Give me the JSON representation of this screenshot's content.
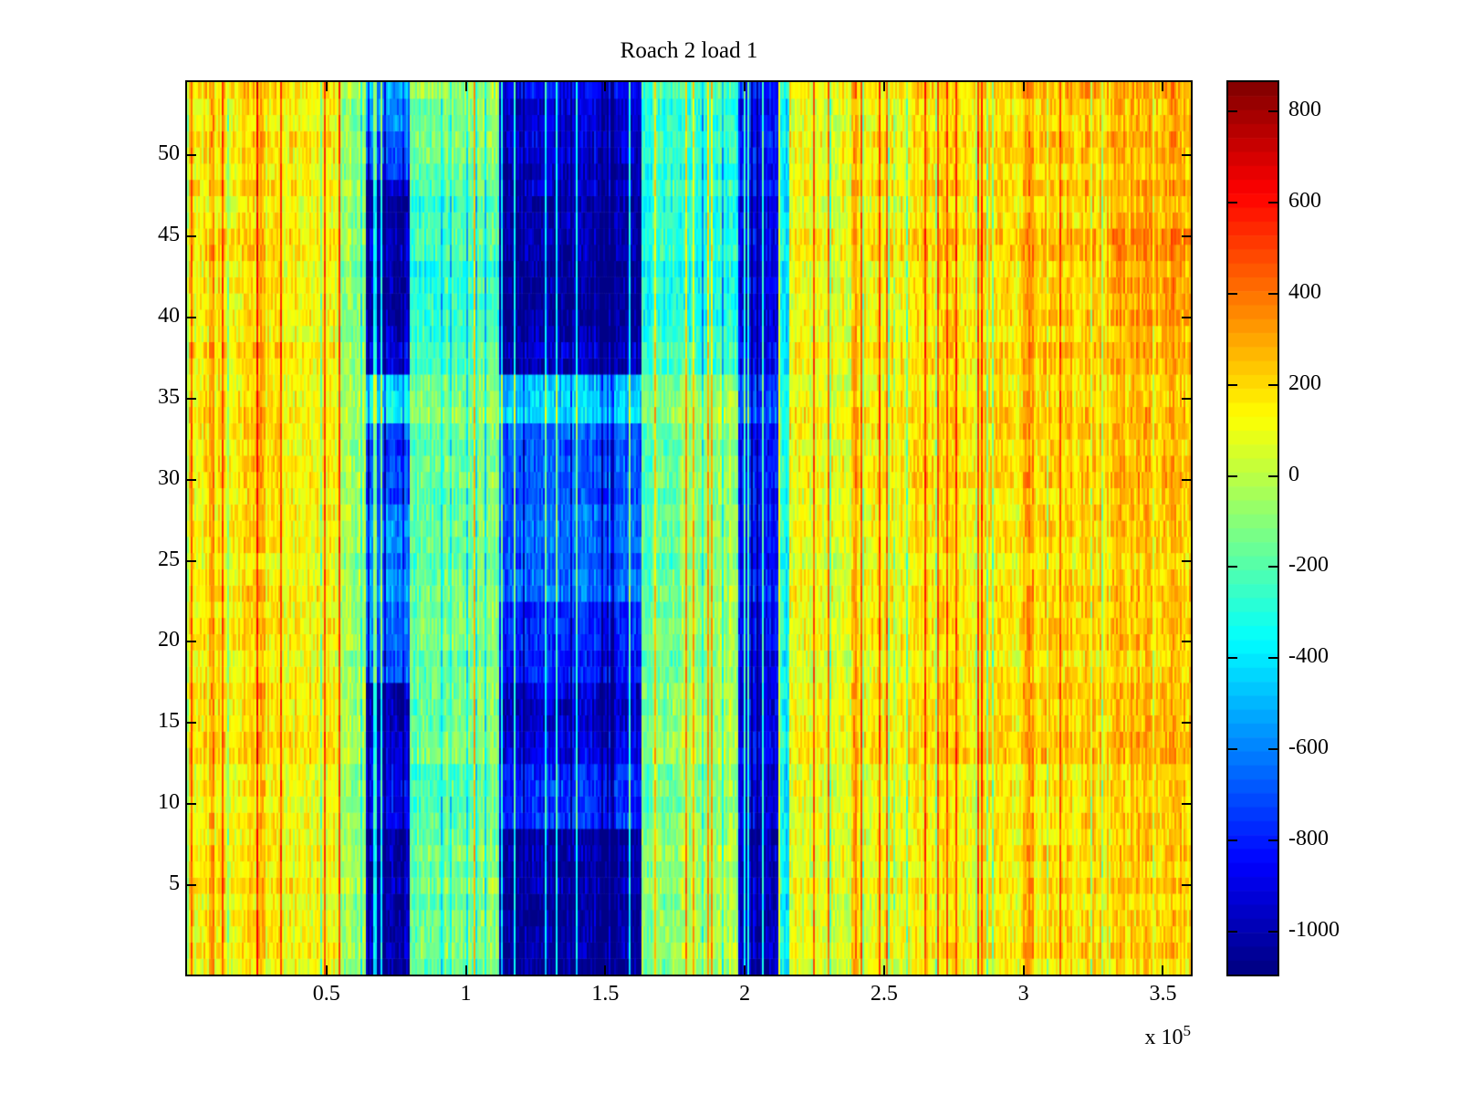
{
  "title": "Roach 2 load 1",
  "axes": {
    "x_tick_labels": [
      "0.5",
      "1",
      "1.5",
      "2",
      "2.5",
      "3",
      "3.5"
    ],
    "y_tick_labels": [
      "5",
      "10",
      "15",
      "20",
      "25",
      "30",
      "35",
      "40",
      "45",
      "50"
    ],
    "x_scale_prefix": "x 10",
    "x_scale_exponent": "5",
    "axis_color": "#000000",
    "background": "#ffffff"
  },
  "colorbar": {
    "tick_labels": [
      "800",
      "600",
      "400",
      "200",
      "0",
      "-200",
      "-400",
      "-600",
      "-800",
      "-1000"
    ],
    "n_levels": 64
  },
  "chart_data": {
    "type": "heatmap",
    "title": "Roach 2 load 1",
    "colormap": "jet",
    "clim": [
      -1095,
      865
    ],
    "x_range": [
      0,
      3.6
    ],
    "x_units": "1e5",
    "x_ticks": [
      0.5,
      1,
      1.5,
      2,
      2.5,
      3,
      3.5
    ],
    "y_ticks": [
      5,
      10,
      15,
      20,
      25,
      30,
      35,
      40,
      45,
      50
    ],
    "n_rows": 55,
    "grid": false,
    "legend": "colorbar-right",
    "row_bands": [
      [
        0,
        8
      ],
      [
        9,
        12
      ],
      [
        13,
        17
      ],
      [
        18,
        22
      ],
      [
        23,
        28
      ],
      [
        29,
        33
      ],
      [
        34,
        36
      ],
      [
        37,
        39
      ],
      [
        40,
        45
      ],
      [
        46,
        48
      ],
      [
        49,
        51
      ],
      [
        52,
        54
      ]
    ],
    "col_band_edges": [
      0,
      0.08,
      0.1,
      0.25,
      0.28,
      0.55,
      0.64,
      0.8,
      0.92,
      1.12,
      1.63,
      1.77,
      1.98,
      2.12,
      2.16,
      2.38,
      2.41,
      2.6,
      3.0,
      3.04,
      3.3,
      3.6
    ],
    "values": [
      [
        140,
        320,
        160,
        300,
        130,
        -60,
        -1000,
        -150,
        -100,
        -1020,
        -80,
        0,
        -950,
        -350,
        90,
        300,
        120,
        150,
        320,
        190,
        230
      ],
      [
        140,
        300,
        150,
        290,
        130,
        -70,
        -850,
        -200,
        -150,
        -750,
        -120,
        -30,
        -880,
        -350,
        100,
        300,
        130,
        160,
        320,
        200,
        240
      ],
      [
        150,
        310,
        160,
        300,
        140,
        -60,
        -1000,
        -180,
        -120,
        -950,
        -100,
        -20,
        -900,
        -360,
        100,
        310,
        140,
        170,
        330,
        210,
        250
      ],
      [
        140,
        300,
        150,
        290,
        130,
        -50,
        -650,
        -150,
        -100,
        -800,
        -150,
        -40,
        -850,
        -340,
        90,
        290,
        130,
        160,
        310,
        200,
        240
      ],
      [
        130,
        290,
        150,
        280,
        120,
        -60,
        -600,
        -180,
        -130,
        -650,
        -180,
        -60,
        -800,
        -330,
        80,
        280,
        120,
        150,
        300,
        190,
        230
      ],
      [
        140,
        300,
        150,
        290,
        130,
        -70,
        -750,
        -200,
        -150,
        -700,
        -200,
        -80,
        -830,
        -340,
        90,
        290,
        130,
        160,
        310,
        200,
        240
      ],
      [
        150,
        310,
        160,
        300,
        140,
        -40,
        -400,
        -120,
        -80,
        -450,
        -120,
        -30,
        -700,
        -300,
        100,
        300,
        140,
        170,
        320,
        210,
        250
      ],
      [
        140,
        300,
        150,
        290,
        130,
        -80,
        -950,
        -250,
        -200,
        -1000,
        -250,
        -250,
        -880,
        -380,
        90,
        290,
        130,
        170,
        320,
        220,
        270
      ],
      [
        150,
        310,
        160,
        300,
        140,
        -100,
        -1000,
        -280,
        -230,
        -1050,
        -300,
        -300,
        -900,
        -400,
        100,
        300,
        140,
        180,
        330,
        240,
        320
      ],
      [
        140,
        300,
        150,
        290,
        130,
        -90,
        -1020,
        -260,
        -200,
        -1000,
        -280,
        -280,
        -850,
        -380,
        90,
        290,
        130,
        170,
        320,
        220,
        280
      ],
      [
        150,
        310,
        160,
        300,
        140,
        -80,
        -700,
        -150,
        -100,
        -950,
        -260,
        -250,
        -820,
        -360,
        100,
        300,
        140,
        180,
        330,
        230,
        280
      ],
      [
        160,
        320,
        170,
        310,
        150,
        -70,
        -550,
        -100,
        -60,
        -900,
        -240,
        -220,
        -800,
        -350,
        110,
        310,
        150,
        190,
        340,
        240,
        290
      ]
    ],
    "noise": {
      "cell_amplitude": 110,
      "column_offset": 65,
      "row_offset": 45,
      "hot_streak_prob": 0.05,
      "hot_streak_scale": 0.72,
      "hot_streak_add": 360,
      "cold_streak_prob": 0.065,
      "cold_streak_scale": 1.05,
      "cold_streak_add": -240,
      "seed": 1234
    }
  }
}
